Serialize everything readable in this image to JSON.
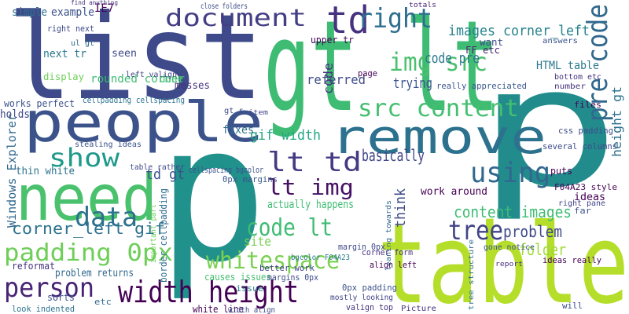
{
  "words": [
    "gt lt",
    "list",
    "p",
    "p",
    "table",
    "people",
    "need",
    "remove",
    "td",
    "document",
    "right",
    "pre code",
    "img src",
    "src content",
    "show",
    "lt td",
    "using",
    "lt img",
    "data",
    "code lt",
    "tree",
    "padding 0px",
    "person",
    "width height",
    "whitespace",
    "corner_left gif",
    "content images",
    "problem",
    "gif width",
    "images corner_left",
    "code pre",
    "trying",
    "basically",
    "td gt",
    "think",
    "Windows Explorer",
    "site",
    "folder",
    "HTML table",
    "height gt",
    "FF etc",
    "rounded corner",
    "IE7",
    "example",
    "simple",
    "holds",
    "next tr",
    "right next",
    "ul gt",
    "works perfect",
    "cellpadding cellspacing",
    "display",
    "seen",
    "done",
    "messes",
    "left valign",
    "fixes",
    "cellspacing bgcolor",
    "0px margins",
    "thin white",
    "table rather",
    "stealing ideas",
    "actually happens",
    "problem returns",
    "reformat",
    "border cellpadding",
    "important part",
    "causes issues",
    "margins 0px",
    "better work",
    "issue",
    "white line",
    "sorts",
    "etc",
    "look indented",
    "width align",
    "valign top",
    "mostly looking",
    "0px padding",
    "margin 0px",
    "bgcolor F04A23",
    "corner form",
    "align left",
    "work around",
    "ideas",
    "F04A23 style",
    "right pane",
    "puts",
    "far",
    "several columns",
    "css padding",
    "files",
    "number",
    "bottom etc",
    "answers",
    "want",
    "upper tr",
    "referred",
    "code",
    "really appreciated",
    "gone notice",
    "leaning towards",
    "ideas really",
    "will",
    "Picture",
    "tree structure",
    "report",
    "close folders",
    "find anything",
    "totals",
    "page",
    "gt s",
    "item"
  ]
}
